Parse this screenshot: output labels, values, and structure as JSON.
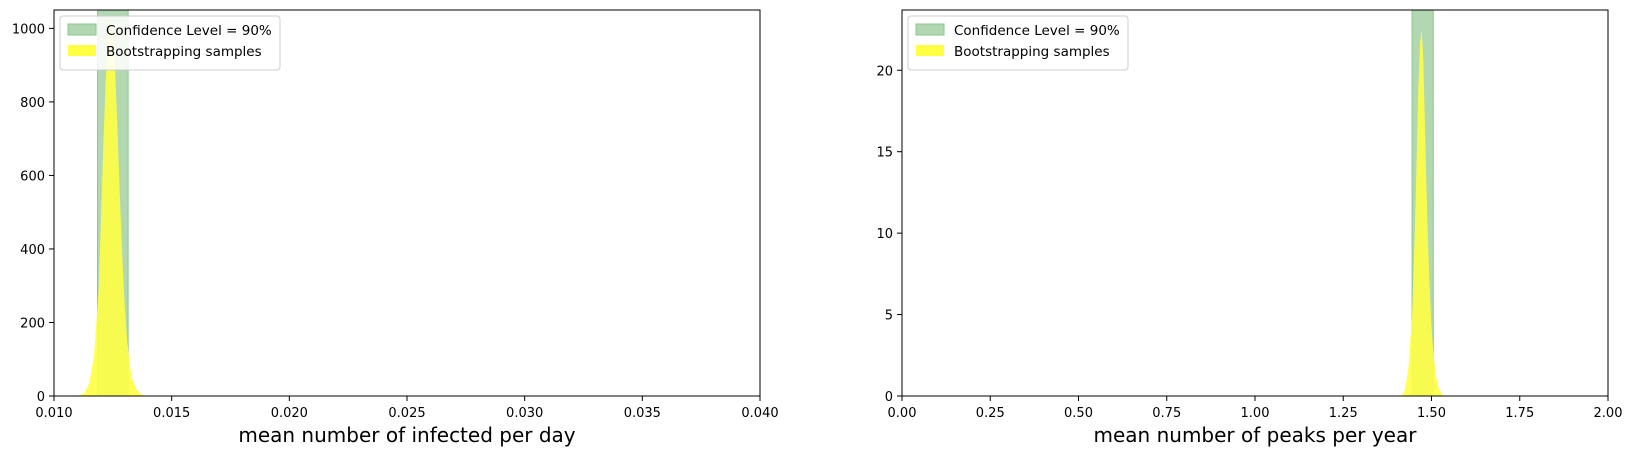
{
  "chart_data": [
    {
      "type": "area",
      "xlabel": "mean number of infected per day",
      "ylabel": "",
      "xlim": [
        0.01,
        0.04
      ],
      "ylim": [
        0,
        1050
      ],
      "xticks": [
        "0.010",
        "0.015",
        "0.020",
        "0.025",
        "0.030",
        "0.035",
        "0.040"
      ],
      "xtick_values": [
        0.01,
        0.015,
        0.02,
        0.025,
        0.03,
        0.035,
        0.04
      ],
      "yticks": [
        "0",
        "200",
        "400",
        "600",
        "800",
        "1000"
      ],
      "ytick_values": [
        0,
        200,
        400,
        600,
        800,
        1000
      ],
      "confidence_interval": [
        0.01185,
        0.01315
      ],
      "legend": [
        "Confidence Level = 90%",
        "Bootstrapping samples"
      ],
      "legend_position": "upper-left",
      "grid": false,
      "series": [
        {
          "name": "Bootstrapping samples",
          "x": [
            0.011,
            0.0113,
            0.0115,
            0.0117,
            0.0119,
            0.012,
            0.0121,
            0.0122,
            0.0123,
            0.0124,
            0.0125,
            0.0126,
            0.0127,
            0.0128,
            0.0129,
            0.013,
            0.0131,
            0.0132,
            0.0133,
            0.0135,
            0.0137,
            0.0139
          ],
          "values": [
            0,
            8,
            35,
            110,
            290,
            490,
            690,
            860,
            975,
            1020,
            990,
            880,
            720,
            540,
            380,
            250,
            160,
            95,
            50,
            18,
            5,
            0
          ]
        }
      ]
    },
    {
      "type": "area",
      "xlabel": "mean number of peaks per year",
      "ylabel": "",
      "xlim": [
        0.0,
        2.0
      ],
      "ylim": [
        0,
        23.7
      ],
      "xticks": [
        "0.00",
        "0.25",
        "0.50",
        "0.75",
        "1.00",
        "1.25",
        "1.50",
        "1.75",
        "2.00"
      ],
      "xtick_values": [
        0.0,
        0.25,
        0.5,
        0.75,
        1.0,
        1.25,
        1.5,
        1.75,
        2.0
      ],
      "yticks": [
        "0",
        "5",
        "10",
        "15",
        "20"
      ],
      "ytick_values": [
        0,
        5,
        10,
        15,
        20
      ],
      "confidence_interval": [
        1.445,
        1.505
      ],
      "legend": [
        "Confidence Level = 90%",
        "Bootstrapping samples"
      ],
      "legend_position": "upper-left",
      "grid": false,
      "series": [
        {
          "name": "Bootstrapping samples",
          "x": [
            1.415,
            1.425,
            1.435,
            1.445,
            1.452,
            1.458,
            1.463,
            1.468,
            1.472,
            1.477,
            1.482,
            1.488,
            1.494,
            1.5,
            1.506,
            1.512,
            1.52,
            1.528,
            1.536
          ],
          "values": [
            0,
            0.4,
            1.8,
            5.0,
            9.5,
            14.5,
            19.0,
            21.8,
            22.5,
            20.5,
            16.0,
            11.0,
            7.0,
            4.2,
            2.5,
            1.3,
            0.5,
            0.15,
            0
          ]
        }
      ]
    }
  ],
  "colors": {
    "confidence_fill": "#b2d8b2",
    "confidence_edge": "#8cc48c",
    "samples_fill": "#ffff44",
    "overlap_fill": "#e6f433"
  }
}
